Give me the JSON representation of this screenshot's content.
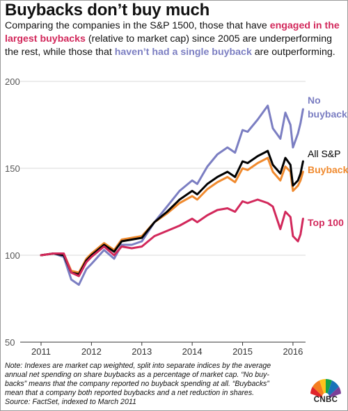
{
  "header": {
    "title": "Buybacks don’t buy much",
    "subtitle_parts": [
      "Comparing the companies in the S&P 1500, those that have ",
      "engaged in the largest buybacks",
      " (relative to market cap) since 2005 are underperforming the rest, while those that ",
      "haven’t had a single buyback",
      " are outperforming."
    ]
  },
  "footer": {
    "note_lines": [
      "Note: Indexes are market cap weighted, split into separate indices by the average",
      "annual net spending on share buybacks as a percentage of market cap. “No buy-",
      "backs” means that the company reported no buyback spending at all. “Buybacks”",
      "mean that a company both reported buybacks and a net reduction in shares.",
      "Source: FactSet, indexed to March 2011"
    ],
    "logo_text": "CNBC"
  },
  "colors": {
    "no_buybacks": "#7b7ec2",
    "all_sp": "#000000",
    "buybacks": "#f08a2e",
    "top100": "#d2285b",
    "grid": "#d8d8d8"
  },
  "chart_data": {
    "type": "line",
    "title": "Buybacks don’t buy much",
    "xlabel": "",
    "ylabel": "",
    "xlim": [
      2011.0,
      2016.25
    ],
    "ylim": [
      50,
      200
    ],
    "x_ticks": [
      "2011",
      "2012",
      "2013",
      "2014",
      "2015",
      "2016"
    ],
    "y_ticks": [
      "200",
      "150",
      "100",
      "50"
    ],
    "x": [
      2011.0,
      2011.25,
      2011.45,
      2011.6,
      2011.75,
      2011.9,
      2012.0,
      2012.25,
      2012.45,
      2012.6,
      2012.8,
      2013.0,
      2013.25,
      2013.5,
      2013.75,
      2014.0,
      2014.1,
      2014.3,
      2014.5,
      2014.7,
      2014.85,
      2015.0,
      2015.1,
      2015.3,
      2015.5,
      2015.6,
      2015.75,
      2015.85,
      2015.95,
      2016.0,
      2016.1,
      2016.15,
      2016.2
    ],
    "series": [
      {
        "name": "No buybacks",
        "color": "#7b7ec2",
        "values": [
          100,
          101,
          99,
          86,
          83,
          92,
          95,
          103,
          98,
          106,
          106,
          108,
          119,
          128,
          137,
          143,
          141,
          151,
          158,
          162,
          159,
          172,
          171,
          178,
          186,
          173,
          167,
          182,
          175,
          162,
          170,
          176,
          184
        ]
      },
      {
        "name": "All S&P",
        "color": "#000000",
        "values": [
          100,
          101,
          100,
          90,
          89,
          97,
          100,
          106,
          102,
          108,
          109,
          110,
          119,
          125,
          132,
          137,
          135,
          141,
          145,
          148,
          145,
          154,
          153,
          157,
          160,
          152,
          147,
          156,
          152,
          140,
          143,
          147,
          154
        ]
      },
      {
        "name": "Buybacks",
        "color": "#f08a2e",
        "values": [
          100,
          101,
          101,
          91,
          90,
          98,
          101,
          107,
          103,
          109,
          110,
          111,
          119,
          124,
          130,
          134,
          132,
          138,
          142,
          145,
          142,
          150,
          149,
          153,
          156,
          148,
          143,
          151,
          148,
          137,
          140,
          143,
          148
        ]
      },
      {
        "name": "Top 100",
        "color": "#d2285b",
        "values": [
          100,
          101,
          101,
          90,
          88,
          96,
          99,
          105,
          100,
          105,
          104,
          105,
          111,
          114,
          117,
          121,
          119,
          123,
          126,
          127,
          125,
          131,
          130,
          132,
          130,
          128,
          115,
          125,
          122,
          111,
          108,
          112,
          121
        ]
      }
    ],
    "end_labels": {
      "no_buybacks_line1": "No",
      "no_buybacks_line2": "buybacks",
      "all_sp": "All S&P",
      "buybacks": "Buybacks",
      "top100": "Top 100"
    },
    "grid": true
  }
}
